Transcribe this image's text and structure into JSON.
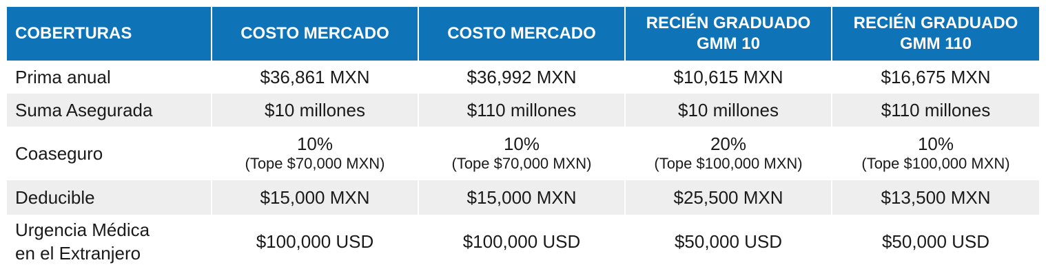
{
  "headers": [
    {
      "lines": [
        "COBERTURAS"
      ]
    },
    {
      "lines": [
        "COSTO MERCADO"
      ]
    },
    {
      "lines": [
        "COSTO MERCADO"
      ]
    },
    {
      "lines": [
        "RECIÉN GRADUADO",
        "GMM 10"
      ]
    },
    {
      "lines": [
        "RECIÉN GRADUADO",
        "GMM 110"
      ]
    }
  ],
  "rows": [
    {
      "label": [
        "Prima anual"
      ],
      "cells": [
        {
          "main": "$36,861 MXN"
        },
        {
          "main": "$36,992 MXN"
        },
        {
          "main": "$10,615 MXN"
        },
        {
          "main": "$16,675 MXN"
        }
      ]
    },
    {
      "label": [
        "Suma Asegurada"
      ],
      "cells": [
        {
          "main": "$10 millones"
        },
        {
          "main": "$110 millones"
        },
        {
          "main": "$10 millones"
        },
        {
          "main": "$110 millones"
        }
      ]
    },
    {
      "label": [
        "Coaseguro"
      ],
      "cells": [
        {
          "main": "10%",
          "sub": "(Tope $70,000 MXN)"
        },
        {
          "main": "10%",
          "sub": "(Tope $70,000 MXN)"
        },
        {
          "main": "20%",
          "sub": "(Tope $100,000 MXN)"
        },
        {
          "main": "10%",
          "sub": "(Tope $100,000 MXN)"
        }
      ]
    },
    {
      "label": [
        "Deducible"
      ],
      "cells": [
        {
          "main": "$15,000 MXN"
        },
        {
          "main": "$15,000 MXN"
        },
        {
          "main": "$25,500 MXN"
        },
        {
          "main": "$13,500 MXN"
        }
      ]
    },
    {
      "label": [
        "Urgencia Médica",
        "en el Extranjero"
      ],
      "cells": [
        {
          "main": "$100,000 USD"
        },
        {
          "main": "$100,000 USD"
        },
        {
          "main": "$50,000 USD"
        },
        {
          "main": "$50,000 USD"
        }
      ]
    }
  ],
  "colors": {
    "header_bg": "#0f73b8",
    "stripe_bg": "#eeeeee",
    "header_text": "#ffffff"
  }
}
